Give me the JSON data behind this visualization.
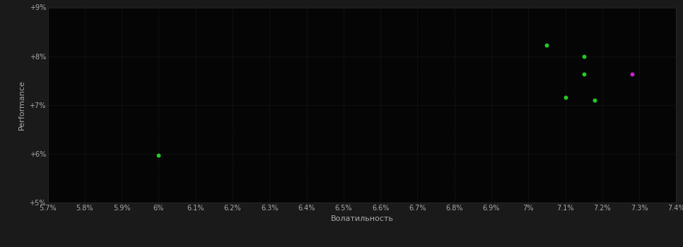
{
  "background_color": "#1a1a1a",
  "plot_bg_color": "#050505",
  "grid_color": "#2d2d2d",
  "xlabel": "Волатильность",
  "ylabel": "Performance",
  "xlim": [
    0.057,
    0.074
  ],
  "ylim": [
    0.05,
    0.09
  ],
  "xtick_vals": [
    0.057,
    0.058,
    0.059,
    0.06,
    0.061,
    0.062,
    0.063,
    0.064,
    0.065,
    0.066,
    0.067,
    0.068,
    0.069,
    0.07,
    0.071,
    0.072,
    0.073,
    0.074
  ],
  "xtick_labels": [
    "5.7%",
    "5.8%",
    "5.9%",
    "6%",
    "6.1%",
    "6.2%",
    "6.3%",
    "6.4%",
    "6.5%",
    "6.6%",
    "6.7%",
    "6.8%",
    "6.9%",
    "7%",
    "7.1%",
    "7.2%",
    "7.3%",
    "7.4%"
  ],
  "ytick_vals": [
    0.05,
    0.06,
    0.07,
    0.08,
    0.09
  ],
  "ytick_labels": [
    "+5%",
    "+6%",
    "+7%",
    "+8%",
    "+9%"
  ],
  "green_points": [
    [
      0.06,
      0.0597
    ],
    [
      0.0705,
      0.0822
    ],
    [
      0.0715,
      0.08
    ],
    [
      0.0715,
      0.0763
    ],
    [
      0.071,
      0.0715
    ],
    [
      0.0718,
      0.071
    ]
  ],
  "magenta_points": [
    [
      0.0728,
      0.0763
    ]
  ],
  "green_color": "#22cc22",
  "magenta_color": "#cc22cc",
  "point_size": 18,
  "tick_color": "#aaaaaa",
  "tick_fontsize": 7,
  "label_fontsize": 8,
  "ylabel_fontsize": 8
}
